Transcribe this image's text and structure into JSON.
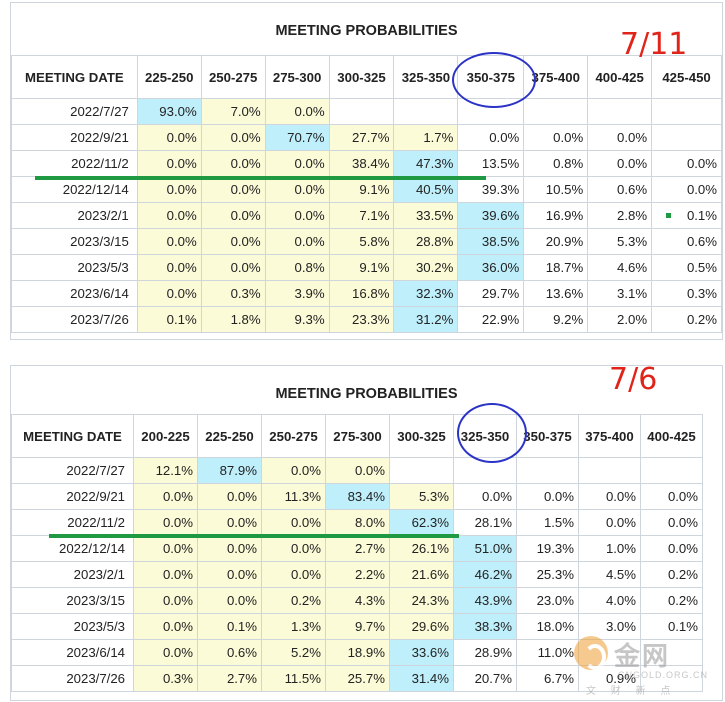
{
  "tables": [
    {
      "title": "MEETING PROBABILITIES",
      "stamp": "7/11",
      "columns": [
        "MEETING DATE",
        "225-250",
        "250-275",
        "275-300",
        "300-325",
        "325-350",
        "350-375",
        "375-400",
        "400-425",
        "425-450"
      ],
      "rows": [
        {
          "date": "2022/7/27",
          "cells": [
            "93.0%",
            "7.0%",
            "0.0%",
            "",
            "",
            "",
            "",
            "",
            ""
          ]
        },
        {
          "date": "2022/9/21",
          "cells": [
            "0.0%",
            "0.0%",
            "70.7%",
            "27.7%",
            "1.7%",
            "0.0%",
            "0.0%",
            "0.0%",
            ""
          ]
        },
        {
          "date": "2022/11/2",
          "cells": [
            "0.0%",
            "0.0%",
            "0.0%",
            "38.4%",
            "47.3%",
            "13.5%",
            "0.8%",
            "0.0%",
            "0.0%"
          ]
        },
        {
          "date": "2022/12/14",
          "cells": [
            "0.0%",
            "0.0%",
            "0.0%",
            "9.1%",
            "40.5%",
            "39.3%",
            "10.5%",
            "0.6%",
            "0.0%"
          ]
        },
        {
          "date": "2023/2/1",
          "cells": [
            "0.0%",
            "0.0%",
            "0.0%",
            "7.1%",
            "33.5%",
            "39.6%",
            "16.9%",
            "2.8%",
            "0.1%"
          ]
        },
        {
          "date": "2023/3/15",
          "cells": [
            "0.0%",
            "0.0%",
            "0.0%",
            "5.8%",
            "28.8%",
            "38.5%",
            "20.9%",
            "5.3%",
            "0.6%"
          ]
        },
        {
          "date": "2023/5/3",
          "cells": [
            "0.0%",
            "0.0%",
            "0.8%",
            "9.1%",
            "30.2%",
            "36.0%",
            "18.7%",
            "4.6%",
            "0.5%"
          ]
        },
        {
          "date": "2023/6/14",
          "cells": [
            "0.0%",
            "0.3%",
            "3.9%",
            "16.8%",
            "32.3%",
            "29.7%",
            "13.6%",
            "3.1%",
            "0.3%"
          ]
        },
        {
          "date": "2023/7/26",
          "cells": [
            "0.1%",
            "1.8%",
            "9.3%",
            "23.3%",
            "31.2%",
            "22.9%",
            "9.2%",
            "2.0%",
            "0.2%"
          ]
        }
      ],
      "shading": [
        [
          "b",
          "y",
          "y",
          "",
          "",
          "",
          "",
          "",
          ""
        ],
        [
          "y",
          "y",
          "b",
          "y",
          "y",
          "",
          "",
          "",
          ""
        ],
        [
          "y",
          "y",
          "y",
          "y",
          "b",
          "",
          "",
          "",
          ""
        ],
        [
          "y",
          "y",
          "y",
          "y",
          "b",
          "",
          "",
          "",
          ""
        ],
        [
          "y",
          "y",
          "y",
          "y",
          "y",
          "b",
          "",
          "",
          ""
        ],
        [
          "y",
          "y",
          "y",
          "y",
          "y",
          "b",
          "",
          "",
          ""
        ],
        [
          "y",
          "y",
          "y",
          "y",
          "y",
          "b",
          "",
          "",
          ""
        ],
        [
          "y",
          "y",
          "y",
          "y",
          "b",
          "",
          "",
          "",
          ""
        ],
        [
          "y",
          "y",
          "y",
          "y",
          "b",
          "",
          "",
          "",
          ""
        ]
      ]
    },
    {
      "title": "MEETING PROBABILITIES",
      "stamp": "7/6",
      "columns": [
        "MEETING DATE",
        "200-225",
        "225-250",
        "250-275",
        "275-300",
        "300-325",
        "325-350",
        "350-375",
        "375-400",
        "400-425"
      ],
      "rows": [
        {
          "date": "2022/7/27",
          "cells": [
            "12.1%",
            "87.9%",
            "0.0%",
            "0.0%",
            "",
            "",
            "",
            "",
            ""
          ]
        },
        {
          "date": "2022/9/21",
          "cells": [
            "0.0%",
            "0.0%",
            "11.3%",
            "83.4%",
            "5.3%",
            "0.0%",
            "0.0%",
            "0.0%",
            "0.0%"
          ]
        },
        {
          "date": "2022/11/2",
          "cells": [
            "0.0%",
            "0.0%",
            "0.0%",
            "8.0%",
            "62.3%",
            "28.1%",
            "1.5%",
            "0.0%",
            "0.0%"
          ]
        },
        {
          "date": "2022/12/14",
          "cells": [
            "0.0%",
            "0.0%",
            "0.0%",
            "2.7%",
            "26.1%",
            "51.0%",
            "19.3%",
            "1.0%",
            "0.0%"
          ]
        },
        {
          "date": "2023/2/1",
          "cells": [
            "0.0%",
            "0.0%",
            "0.0%",
            "2.2%",
            "21.6%",
            "46.2%",
            "25.3%",
            "4.5%",
            "0.2%"
          ]
        },
        {
          "date": "2023/3/15",
          "cells": [
            "0.0%",
            "0.0%",
            "0.2%",
            "4.3%",
            "24.3%",
            "43.9%",
            "23.0%",
            "4.0%",
            "0.2%"
          ]
        },
        {
          "date": "2023/5/3",
          "cells": [
            "0.0%",
            "0.1%",
            "1.3%",
            "9.7%",
            "29.6%",
            "38.3%",
            "18.0%",
            "3.0%",
            "0.1%"
          ]
        },
        {
          "date": "2023/6/14",
          "cells": [
            "0.0%",
            "0.6%",
            "5.2%",
            "18.9%",
            "33.6%",
            "28.9%",
            "11.0%",
            "",
            ""
          ]
        },
        {
          "date": "2023/7/26",
          "cells": [
            "0.3%",
            "2.7%",
            "11.5%",
            "25.7%",
            "31.4%",
            "20.7%",
            "6.7%",
            "0.9%",
            ""
          ]
        }
      ],
      "shading": [
        [
          "y",
          "b",
          "y",
          "y",
          "",
          "",
          "",
          "",
          ""
        ],
        [
          "y",
          "y",
          "y",
          "b",
          "y",
          "",
          "",
          "",
          ""
        ],
        [
          "y",
          "y",
          "y",
          "y",
          "b",
          "",
          "",
          "",
          ""
        ],
        [
          "y",
          "y",
          "y",
          "y",
          "y",
          "b",
          "",
          "",
          ""
        ],
        [
          "y",
          "y",
          "y",
          "y",
          "y",
          "b",
          "",
          "",
          ""
        ],
        [
          "y",
          "y",
          "y",
          "y",
          "y",
          "b",
          "",
          "",
          ""
        ],
        [
          "y",
          "y",
          "y",
          "y",
          "y",
          "b",
          "",
          "",
          ""
        ],
        [
          "y",
          "y",
          "y",
          "y",
          "b",
          "",
          "",
          "",
          ""
        ],
        [
          "y",
          "y",
          "y",
          "y",
          "b",
          "",
          "",
          "",
          ""
        ]
      ]
    }
  ],
  "watermark": {
    "name": "金网",
    "url": "CNGOLD.ORG.CN",
    "tag": "文 财 新 点"
  },
  "colors": {
    "highlight_yellow": "#fbfbd8",
    "highlight_blue": "#bfeffb",
    "annotation_circle": "#2b34c6",
    "annotation_line": "#1f9a43",
    "stamp": "#e0241a"
  },
  "chart_data": [
    {
      "type": "table",
      "title": "MEETING PROBABILITIES",
      "annotation": "7/11",
      "columns": [
        "MEETING DATE",
        "225-250",
        "250-275",
        "275-300",
        "300-325",
        "325-350",
        "350-375",
        "375-400",
        "400-425",
        "425-450"
      ],
      "rows": [
        [
          "2022/7/27",
          93.0,
          7.0,
          0.0,
          null,
          null,
          null,
          null,
          null,
          null
        ],
        [
          "2022/9/21",
          0.0,
          0.0,
          70.7,
          27.7,
          1.7,
          0.0,
          0.0,
          0.0,
          null
        ],
        [
          "2022/11/2",
          0.0,
          0.0,
          0.0,
          38.4,
          47.3,
          13.5,
          0.8,
          0.0,
          0.0
        ],
        [
          "2022/12/14",
          0.0,
          0.0,
          0.0,
          9.1,
          40.5,
          39.3,
          10.5,
          0.6,
          0.0
        ],
        [
          "2023/2/1",
          0.0,
          0.0,
          0.0,
          7.1,
          33.5,
          39.6,
          16.9,
          2.8,
          0.1
        ],
        [
          "2023/3/15",
          0.0,
          0.0,
          0.0,
          5.8,
          28.8,
          38.5,
          20.9,
          5.3,
          0.6
        ],
        [
          "2023/5/3",
          0.0,
          0.0,
          0.8,
          9.1,
          30.2,
          36.0,
          18.7,
          4.6,
          0.5
        ],
        [
          "2023/6/14",
          0.0,
          0.3,
          3.9,
          16.8,
          32.3,
          29.7,
          13.6,
          3.1,
          0.3
        ],
        [
          "2023/7/26",
          0.1,
          1.8,
          9.3,
          23.3,
          31.2,
          22.9,
          9.2,
          2.0,
          0.2
        ]
      ]
    },
    {
      "type": "table",
      "title": "MEETING PROBABILITIES",
      "annotation": "7/6",
      "columns": [
        "MEETING DATE",
        "200-225",
        "225-250",
        "250-275",
        "275-300",
        "300-325",
        "325-350",
        "350-375",
        "375-400",
        "400-425"
      ],
      "rows": [
        [
          "2022/7/27",
          12.1,
          87.9,
          0.0,
          0.0,
          null,
          null,
          null,
          null,
          null
        ],
        [
          "2022/9/21",
          0.0,
          0.0,
          11.3,
          83.4,
          5.3,
          0.0,
          0.0,
          0.0,
          0.0
        ],
        [
          "2022/11/2",
          0.0,
          0.0,
          0.0,
          8.0,
          62.3,
          28.1,
          1.5,
          0.0,
          0.0
        ],
        [
          "2022/12/14",
          0.0,
          0.0,
          0.0,
          2.7,
          26.1,
          51.0,
          19.3,
          1.0,
          0.0
        ],
        [
          "2023/2/1",
          0.0,
          0.0,
          0.0,
          2.2,
          21.6,
          46.2,
          25.3,
          4.5,
          0.2
        ],
        [
          "2023/3/15",
          0.0,
          0.0,
          0.2,
          4.3,
          24.3,
          43.9,
          23.0,
          4.0,
          0.2
        ],
        [
          "2023/5/3",
          0.0,
          0.1,
          1.3,
          9.7,
          29.6,
          38.3,
          18.0,
          3.0,
          0.1
        ],
        [
          "2023/6/14",
          0.0,
          0.6,
          5.2,
          18.9,
          33.6,
          28.9,
          11.0,
          null,
          null
        ],
        [
          "2023/7/26",
          0.3,
          2.7,
          11.5,
          25.7,
          31.4,
          20.7,
          6.7,
          0.9,
          null
        ]
      ]
    }
  ]
}
